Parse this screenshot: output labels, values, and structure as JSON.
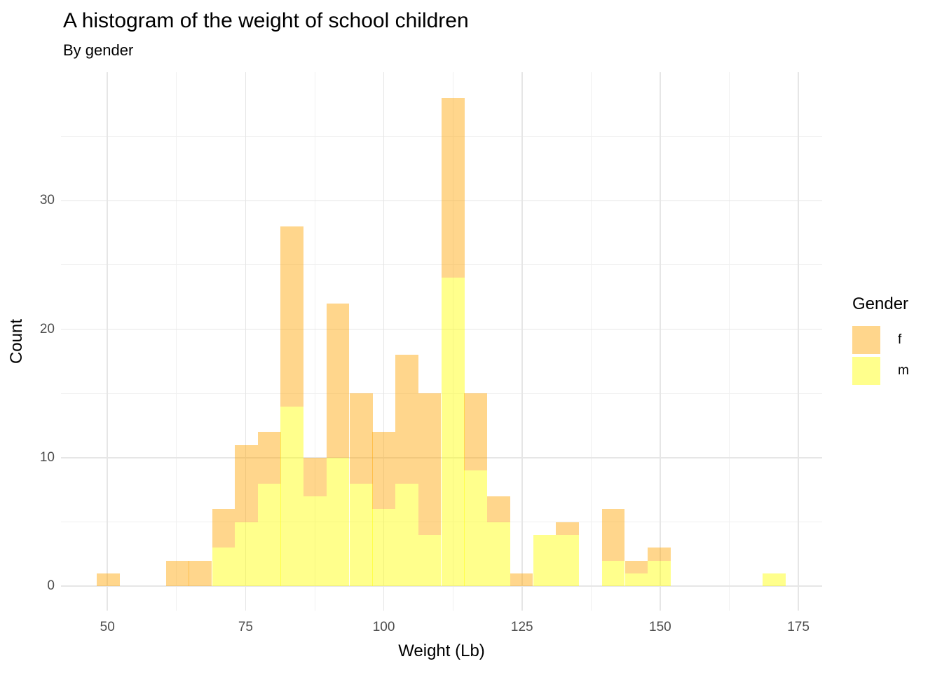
{
  "header": {
    "title": "A histogram of the weight of school children",
    "subtitle": "By gender"
  },
  "colors": {
    "background": "#ffffff",
    "grid_major": "#e6e6e6",
    "grid_minor": "#f0f0f0",
    "axis_text": "#4d4d4d",
    "title_text": "#000000",
    "f_fill": "rgba(255,165,0,0.45)",
    "m_fill": "rgba(255,255,0,0.45)",
    "f_blended_hex": "#fbd49b",
    "m_blended_hex": "#fdfba2"
  },
  "chart_data": {
    "type": "bar",
    "subtype": "stacked-histogram",
    "title": "A histogram of the weight of school children",
    "subtitle": "By gender",
    "xlabel": "Weight (Lb)",
    "ylabel": "Count",
    "xlim": [
      41.6,
      179.3
    ],
    "ylim": [
      -1.9,
      40.0
    ],
    "x_major_ticks": [
      50,
      75,
      100,
      125,
      150,
      175
    ],
    "x_minor_ticks": [
      62.5,
      87.5,
      112.5,
      137.5,
      162.5
    ],
    "y_major_ticks": [
      0,
      10,
      20,
      30
    ],
    "y_minor_ticks": [
      5,
      15,
      25,
      35
    ],
    "grid": "on",
    "legend_position": "right",
    "legend": {
      "title": "Gender",
      "entries": [
        {
          "name": "f",
          "label": "f",
          "color": "rgba(255,165,0,0.45)"
        },
        {
          "name": "m",
          "label": "m",
          "color": "rgba(255,255,0,0.45)"
        }
      ]
    },
    "stack_order_bottom_to_top": [
      "m",
      "f"
    ],
    "bin_width": 4.15,
    "series": [
      {
        "name": "f",
        "label": "f",
        "color": "rgba(255,165,0,0.45)"
      },
      {
        "name": "m",
        "label": "m",
        "color": "rgba(255,255,0,0.45)"
      }
    ],
    "bins": [
      {
        "center": 50.2,
        "m": 0,
        "f": 1
      },
      {
        "center": 54.4,
        "m": 0,
        "f": 0
      },
      {
        "center": 58.5,
        "m": 0,
        "f": 0
      },
      {
        "center": 62.7,
        "m": 0,
        "f": 2
      },
      {
        "center": 66.8,
        "m": 0,
        "f": 2
      },
      {
        "center": 71.0,
        "m": 3,
        "f": 3
      },
      {
        "center": 75.1,
        "m": 5,
        "f": 6
      },
      {
        "center": 79.3,
        "m": 8,
        "f": 4
      },
      {
        "center": 83.4,
        "m": 14,
        "f": 14
      },
      {
        "center": 87.6,
        "m": 7,
        "f": 3
      },
      {
        "center": 91.7,
        "m": 10,
        "f": 12
      },
      {
        "center": 95.9,
        "m": 8,
        "f": 7
      },
      {
        "center": 100.0,
        "m": 6,
        "f": 6
      },
      {
        "center": 104.2,
        "m": 8,
        "f": 10
      },
      {
        "center": 108.3,
        "m": 4,
        "f": 11
      },
      {
        "center": 112.5,
        "m": 24,
        "f": 14
      },
      {
        "center": 116.6,
        "m": 9,
        "f": 6
      },
      {
        "center": 120.8,
        "m": 5,
        "f": 2
      },
      {
        "center": 124.9,
        "m": 0,
        "f": 1
      },
      {
        "center": 129.1,
        "m": 4,
        "f": 0
      },
      {
        "center": 133.2,
        "m": 4,
        "f": 1
      },
      {
        "center": 137.4,
        "m": 0,
        "f": 0
      },
      {
        "center": 141.5,
        "m": 2,
        "f": 4
      },
      {
        "center": 145.7,
        "m": 1,
        "f": 1
      },
      {
        "center": 149.8,
        "m": 2,
        "f": 1
      },
      {
        "center": 154.0,
        "m": 0,
        "f": 0
      },
      {
        "center": 158.1,
        "m": 0,
        "f": 0
      },
      {
        "center": 162.3,
        "m": 0,
        "f": 0
      },
      {
        "center": 166.4,
        "m": 0,
        "f": 0
      },
      {
        "center": 170.6,
        "m": 1,
        "f": 0
      }
    ]
  }
}
